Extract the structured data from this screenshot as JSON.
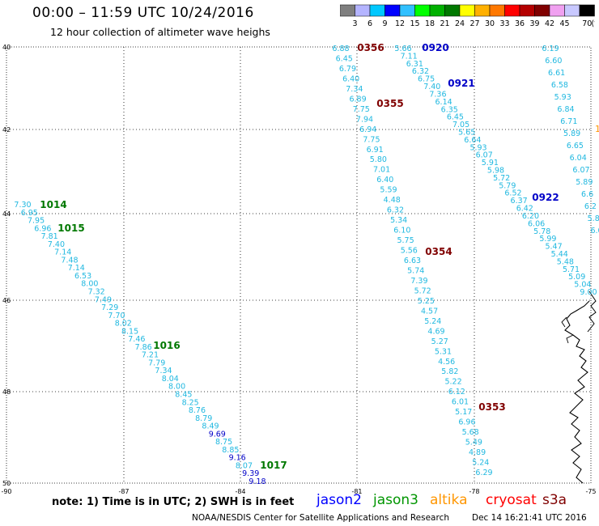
{
  "header": {
    "title": "00:00 – 11:59 UTC 10/24/2016",
    "subtitle": "12 hour collection of altimeter wave heighs"
  },
  "colorbar": {
    "unit": "(ft)",
    "labels": [
      "3",
      "6",
      "9",
      "12",
      "15",
      "18",
      "21",
      "24",
      "27",
      "30",
      "33",
      "36",
      "39",
      "42",
      "45",
      "70"
    ],
    "colors": [
      "#7f7f7f",
      "#b4b4ff",
      "#00c8ff",
      "#0000ff",
      "#30c0ff",
      "#00ff00",
      "#00b000",
      "#007800",
      "#ffff00",
      "#ffb000",
      "#ff7800",
      "#ff0000",
      "#b40000",
      "#800000",
      "#f0a0f0",
      "#c8c8ff",
      "#000000"
    ]
  },
  "map": {
    "lat_ticks": [
      "40",
      "42",
      "44",
      "46",
      "48",
      "50"
    ],
    "lon_ticks": [
      "-90",
      "-87",
      "-84",
      "-81",
      "-78",
      "-75"
    ],
    "passes": [
      {
        "label": "0356",
        "color": "#800000"
      },
      {
        "label": "0355",
        "color": "#800000"
      },
      {
        "label": "0354",
        "color": "#800000"
      },
      {
        "label": "0353",
        "color": "#800000"
      },
      {
        "label": "0920",
        "color": "#0000c8"
      },
      {
        "label": "0921",
        "color": "#0000c8"
      },
      {
        "label": "0922",
        "color": "#0000c8"
      },
      {
        "label": "1014",
        "color": "#007800"
      },
      {
        "label": "1015",
        "color": "#007800"
      },
      {
        "label": "1016",
        "color": "#007800"
      },
      {
        "label": "1017",
        "color": "#007800"
      }
    ],
    "track_a": [
      "6.88",
      "6.45",
      "6.79",
      "6.40",
      "7.34",
      "6.89",
      "7.75",
      "7.94",
      "6.94",
      "7.75",
      "6.91",
      "5.80",
      "7.01",
      "6.40",
      "5.59",
      "4.48",
      "6.32",
      "5.34",
      "6.10",
      "5.75",
      "5.56",
      "6.63",
      "5.74",
      "7.39",
      "5.72",
      "5.25",
      "4.57",
      "5.24",
      "4.69",
      "5.27",
      "5.31",
      "4.56",
      "5.82",
      "5.22",
      "6.12",
      "6.01",
      "5.17",
      "6.96",
      "5.68",
      "5.49",
      "4.89",
      "5.24",
      "6.29"
    ],
    "track_b": [
      "5.66",
      "7.11",
      "6.31",
      "6.32",
      "6.75",
      "7.40",
      "7.36",
      "6.14",
      "6.35",
      "6.45",
      "7.05",
      "5.65",
      "6.64",
      "5.93",
      "6.07",
      "5.91",
      "5.98",
      "5.72",
      "5.79",
      "6.52",
      "6.37",
      "6.42",
      "6.20",
      "6.06",
      "5.78",
      "5.99",
      "5.47",
      "5.44",
      "5.48",
      "5.71",
      "5.09",
      "5.04",
      "9.00"
    ],
    "track_c": [
      "6.19",
      "6.60",
      "6.61",
      "6.58",
      "5.93",
      "6.84",
      "6.71",
      "5.89",
      "6.65",
      "6.04",
      "6.07",
      "5.89",
      "6.6",
      "6.2",
      "5.8",
      "6.0"
    ],
    "track_d": [
      "7.30",
      "6.95",
      "7.95",
      "6.96",
      "7.81",
      "7.40",
      "7.14",
      "7.48",
      "7.14",
      "6.53",
      "8.00",
      "7.32",
      "7.49",
      "7.29",
      "7.70",
      "8.02",
      "8.15",
      "7.46",
      "7.86",
      "7.21",
      "7.79",
      "7.34",
      "8.04",
      "8.00",
      "8.45",
      "8.25",
      "8.76",
      "8.79",
      "8.49",
      "9.69",
      "8.75",
      "8.85",
      "9.16",
      "8.07",
      "9.39",
      "9.18"
    ],
    "stray": "1"
  },
  "legend": {
    "note": "note: 1) Time is in UTC; 2) SWH is in feet",
    "satellites": [
      {
        "name": "jason2",
        "color": "#0000ff"
      },
      {
        "name": "jason3",
        "color": "#009600"
      },
      {
        "name": "altika",
        "color": "#ff9600"
      },
      {
        "name": "cryosat",
        "color": "#ff0000"
      },
      {
        "name": "s3a",
        "color": "#800000"
      }
    ]
  },
  "footer": {
    "credit": "NOAA/NESDIS Center for Satellite Applications and Research",
    "timestamp": "Dec 14 16:21:41 UTC 2016"
  }
}
